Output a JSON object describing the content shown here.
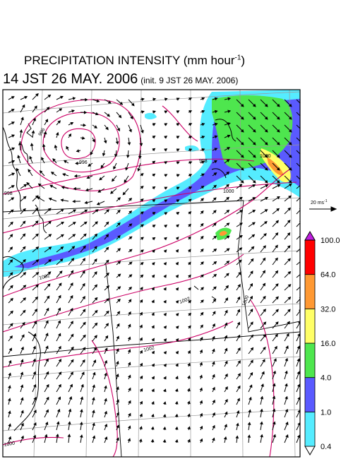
{
  "title": {
    "prefix": "PRECIPITATION INTENSITY (mm hour",
    "exponent": "-1",
    "suffix": ")"
  },
  "valid_time": "14 JST 26 MAY. 2006",
  "init_time": "(init. 9 JST 26 MAY. 2006)",
  "wind_reference": {
    "label": "20 ms",
    "exponent": "-1"
  },
  "colorbar": {
    "labels": [
      "0.4",
      "1.0",
      "4.0",
      "16.0",
      "32.0",
      "64.0",
      "100.0"
    ],
    "colors": [
      "#ffffff",
      "#55ecff",
      "#5a5aff",
      "#4ee64e",
      "#ffff66",
      "#ff9933",
      "#ff0000",
      "#c01ee0"
    ]
  },
  "contour_labels": [
    "996",
    "996",
    "998",
    "998",
    "1000",
    "1000",
    "1002",
    "1002",
    "1002",
    "1000",
    "1000"
  ],
  "colors": {
    "isobar": "#cc0066",
    "grid": "#999999",
    "coast": "#000000",
    "frame": "#000000"
  }
}
